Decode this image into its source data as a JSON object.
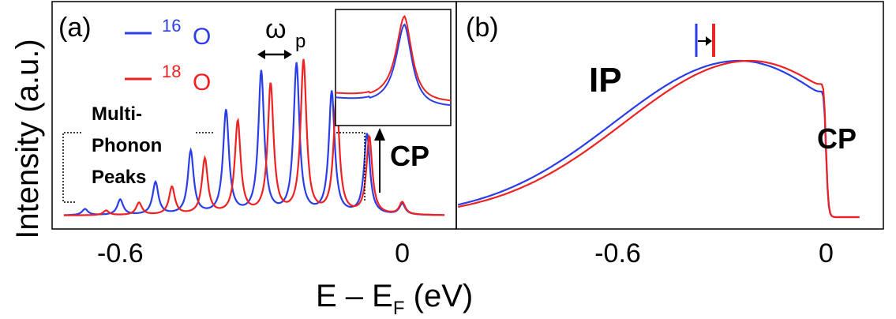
{
  "figure": {
    "ylabel": "Intensity (a.u.)",
    "xlabel_main": "E – E",
    "xlabel_sub": "F",
    "xlabel_unit": " (eV)",
    "colors": {
      "blue": "#2a3ee8",
      "red": "#ee2222"
    }
  },
  "chart_data": [
    {
      "panel": "(a)",
      "type": "line",
      "xlabel": "E – EF (eV)",
      "ylabel": "Intensity (a.u.)",
      "xlim": [
        -0.745,
        0.115
      ],
      "ylim": [
        0,
        1.0
      ],
      "xticks": [
        {
          "value": -0.6,
          "label": "-0.6"
        },
        {
          "value": 0,
          "label": "0"
        }
      ],
      "legend": [
        {
          "name": "16O",
          "mass": "16",
          "element": "O",
          "color": "#2a3ee8"
        },
        {
          "name": "18O",
          "mass": "18",
          "element": "O",
          "color": "#ee2222"
        }
      ],
      "series": [
        {
          "name": "16O",
          "color": "#2a3ee8",
          "peaks": [
            {
              "x": 0.0,
              "a": 0.07
            },
            {
              "x": -0.075,
              "a": 0.52
            },
            {
              "x": -0.15,
              "a": 0.79
            },
            {
              "x": -0.225,
              "a": 0.97
            },
            {
              "x": -0.3,
              "a": 0.92
            },
            {
              "x": -0.375,
              "a": 0.67
            },
            {
              "x": -0.45,
              "a": 0.41
            },
            {
              "x": -0.525,
              "a": 0.21
            },
            {
              "x": -0.6,
              "a": 0.1
            },
            {
              "x": -0.675,
              "a": 0.04
            }
          ],
          "width": 0.0075,
          "baseline": 0.005
        },
        {
          "name": "18O",
          "color": "#ee2222",
          "peaks": [
            {
              "x": 0.0,
              "a": 0.08
            },
            {
              "x": -0.07,
              "a": 0.5
            },
            {
              "x": -0.14,
              "a": 0.75
            },
            {
              "x": -0.21,
              "a": 0.99
            },
            {
              "x": -0.28,
              "a": 0.84
            },
            {
              "x": -0.35,
              "a": 0.6
            },
            {
              "x": -0.42,
              "a": 0.36
            },
            {
              "x": -0.49,
              "a": 0.18
            },
            {
              "x": -0.56,
              "a": 0.08
            },
            {
              "x": -0.63,
              "a": 0.03
            }
          ],
          "width": 0.0075,
          "baseline": 0.005
        }
      ],
      "annotations": {
        "omega": "ω",
        "omega_sub": "p",
        "multiphonon": [
          "Multi-",
          "Phonon",
          "Peaks"
        ],
        "cp": "CP"
      },
      "inset": {
        "type": "line",
        "series": [
          {
            "name": "16O",
            "color": "#2a3ee8",
            "peak_x": 0.6,
            "amp": 0.88,
            "offset": 0.0
          },
          {
            "name": "18O",
            "color": "#ee2222",
            "peak_x": 0.6,
            "amp": 0.92,
            "offset": 0.05
          }
        ]
      }
    },
    {
      "panel": "(b)",
      "type": "line",
      "xlim": [
        -1.065,
        0.165
      ],
      "ylim": [
        0,
        1.0
      ],
      "xticks": [
        {
          "value": -0.6,
          "label": "-0.6"
        },
        {
          "value": 0,
          "label": "0"
        }
      ],
      "series": [
        {
          "name": "16O",
          "color": "#2a3ee8",
          "ip_peak": -0.25,
          "ip_height": 1.0,
          "cp_x": -0.005,
          "cp_height": 0.52
        },
        {
          "name": "18O",
          "color": "#ee2222",
          "ip_peak": -0.22,
          "ip_height": 1.0,
          "cp_x": -0.005,
          "cp_height": 0.55
        }
      ],
      "annotations": {
        "ip": "IP",
        "cp": "CP"
      }
    }
  ]
}
